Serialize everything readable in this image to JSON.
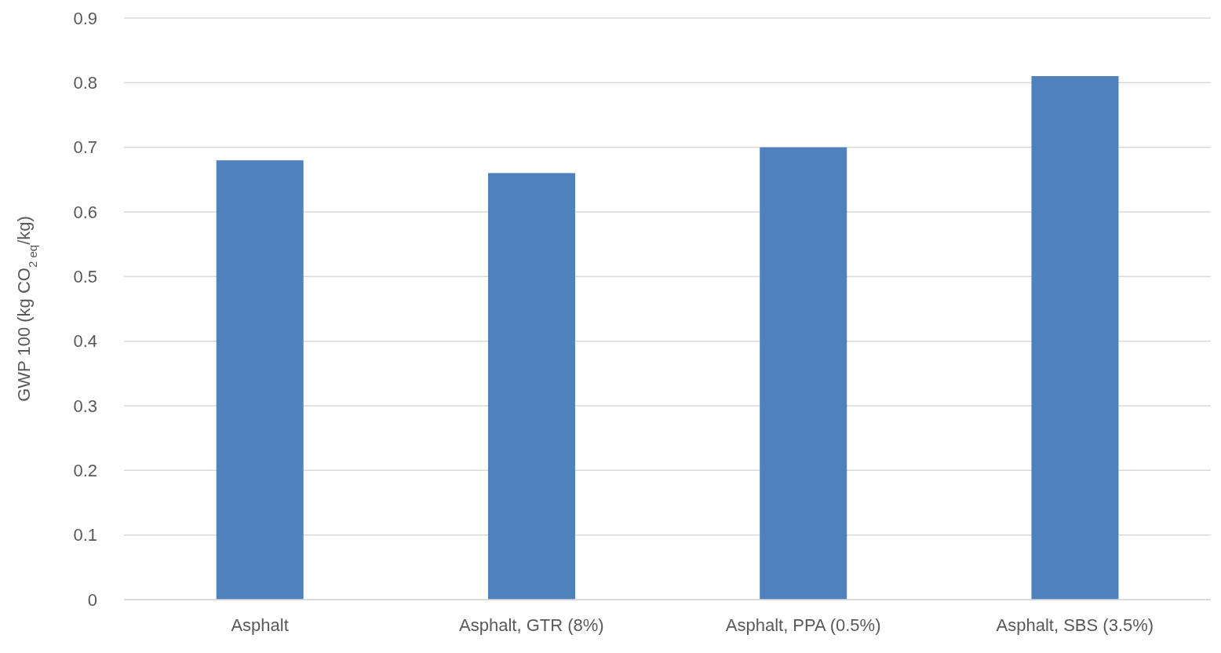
{
  "chart_data": {
    "type": "bar",
    "ylabel": "GWP 100 (kg CO$_{2 eq}$/kg)",
    "categories": [
      "Asphalt",
      "Asphalt, GTR (8%)",
      "Asphalt, PPA (0.5%)",
      "Asphalt, SBS (3.5%)"
    ],
    "values": [
      0.68,
      0.66,
      0.7,
      0.81
    ],
    "color": "#4f81bd",
    "ylim": [
      0,
      0.9
    ],
    "yticks": [
      0,
      0.1,
      0.2,
      0.3,
      0.4,
      0.5,
      0.6,
      0.7,
      0.8,
      0.9
    ],
    "grid": "y",
    "legend": false
  }
}
